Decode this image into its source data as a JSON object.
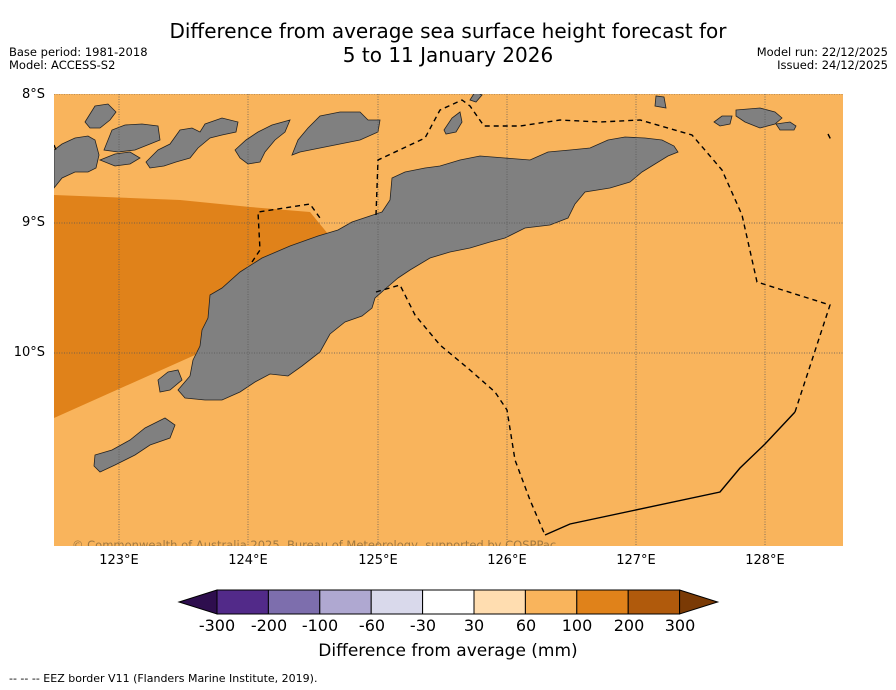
{
  "title": {
    "line1": "Difference from average sea surface height forecast for",
    "line2": "5 to 11 January 2026"
  },
  "meta_left": {
    "base_period": "Base period: 1981-2018",
    "model": "Model: ACCESS-S2"
  },
  "meta_right": {
    "model_run": "Model run: 22/12/2025",
    "issued": "Issued: 24/12/2025"
  },
  "map": {
    "lat_labels": [
      "8°S",
      "9°S",
      "10°S"
    ],
    "lon_labels": [
      "123°E",
      "124°E",
      "125°E",
      "126°E",
      "127°E",
      "128°E"
    ],
    "copyright": "© Commonwealth of Australia 2025, Bureau of Meteorology, supported by COSPPac",
    "colors": {
      "ocean_60_100": "#F9B45C",
      "ocean_100_200": "#E0821A",
      "land": "#808080",
      "land_outline": "#222222",
      "gridline": "#555555"
    }
  },
  "colorbar": {
    "ticks": [
      "-300",
      "-200",
      "-100",
      "-60",
      "-30",
      "30",
      "60",
      "100",
      "200",
      "300"
    ],
    "colors": [
      "#2E0E4E",
      "#522A89",
      "#7D6EAD",
      "#AFA8D1",
      "#D9D9EB",
      "#FFFFFF",
      "#FFDDB0",
      "#F9B45C",
      "#E0821A",
      "#B05A0C",
      "#7A3A05"
    ],
    "label": "Difference from average (mm)"
  },
  "footnote": "--  --  -- EEZ border V11 (Flanders Marine Institute, 2019)."
}
